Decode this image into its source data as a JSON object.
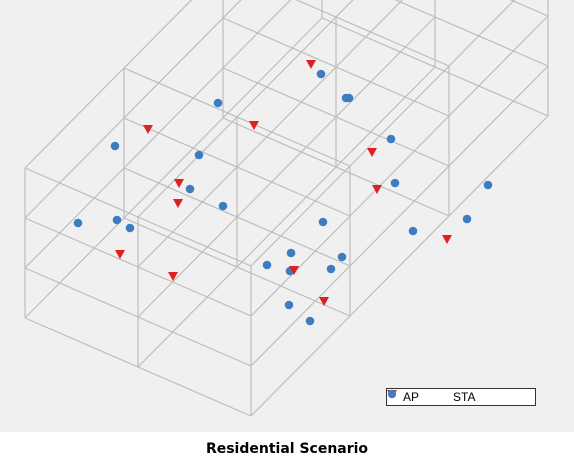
{
  "diagram": {
    "colors": {
      "background": "#f0f0f0",
      "wire": "#bdbdbd",
      "ap": "#e02020",
      "sta": "#3d7cc0"
    },
    "legend": {
      "items": [
        {
          "label": "AP",
          "marker": "down-triangle-icon"
        },
        {
          "label": "STA",
          "marker": "circle-icon"
        }
      ]
    },
    "caption": "Residential Scenario"
  }
}
